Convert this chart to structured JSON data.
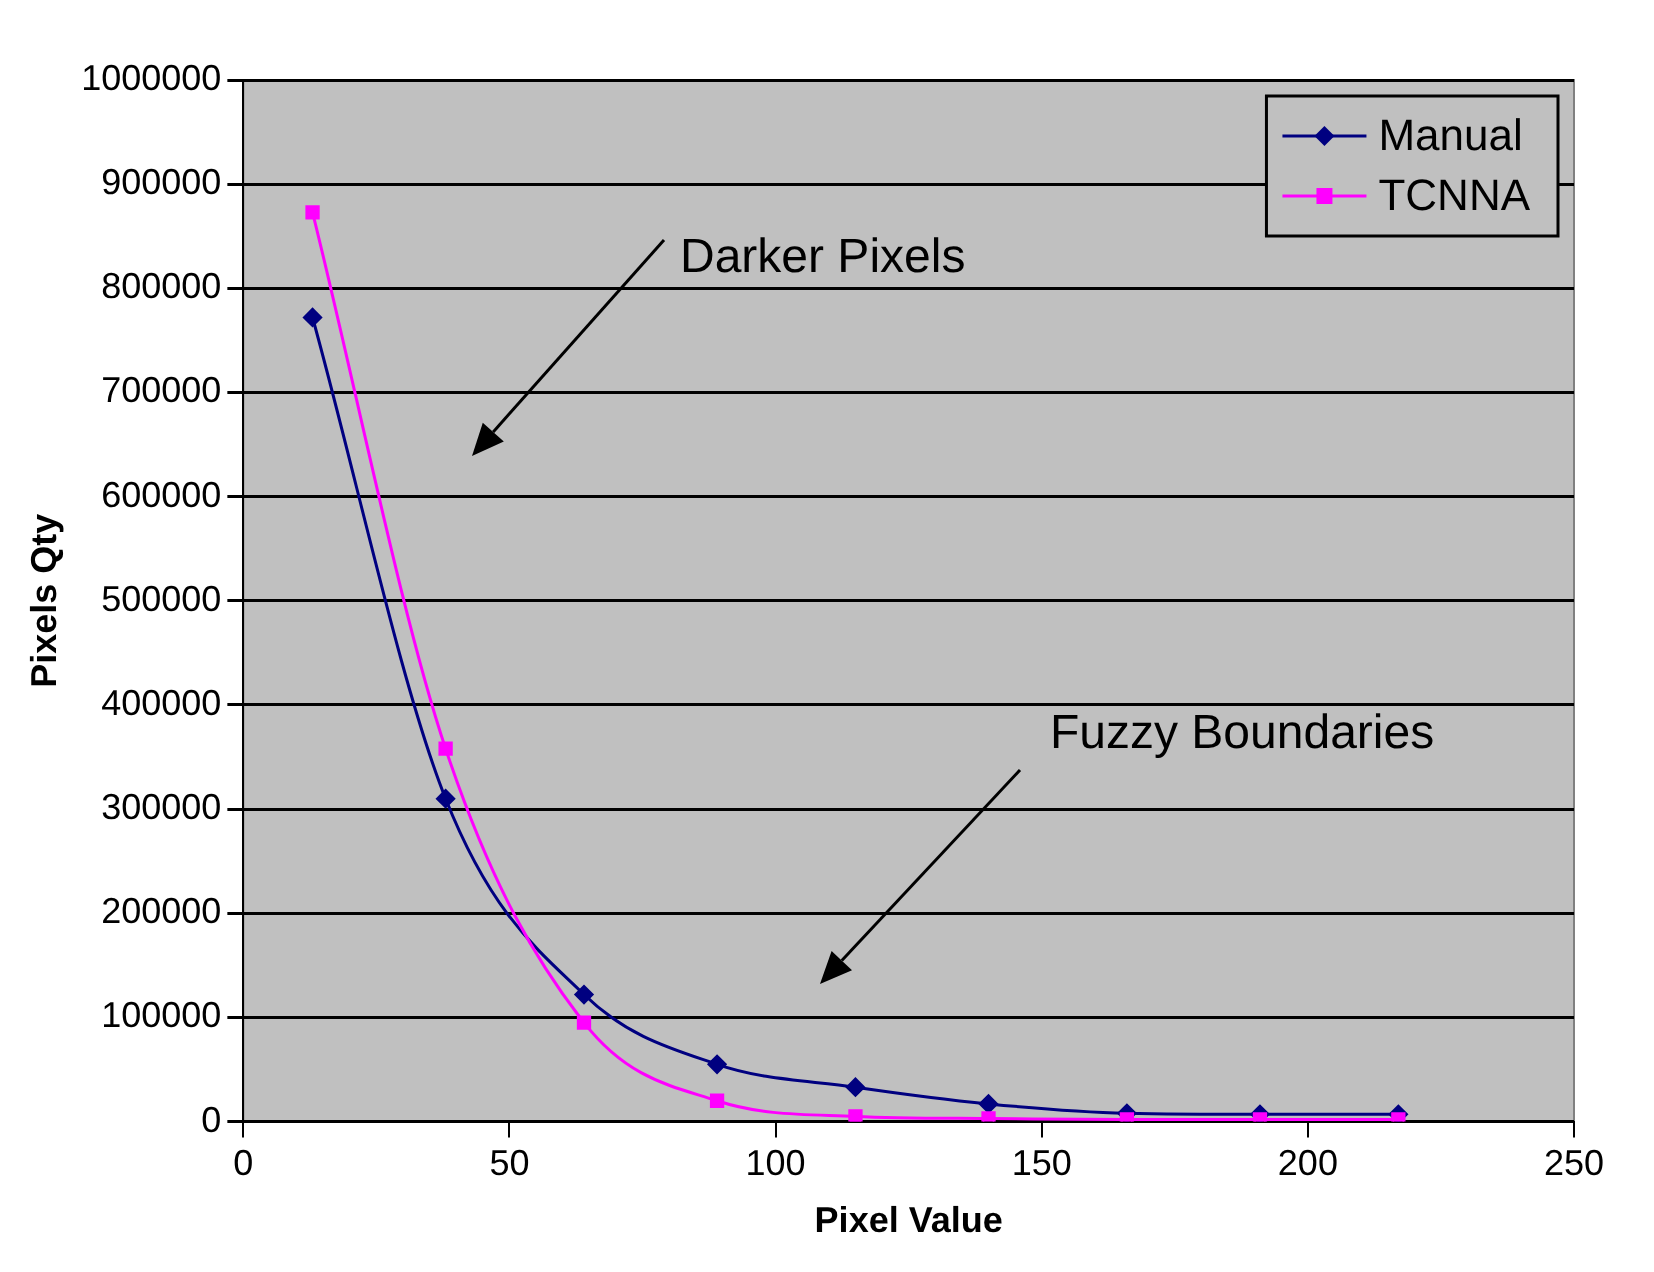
{
  "chart_data": {
    "type": "line",
    "xlabel": "Pixel Value",
    "ylabel": "Pixels Qty",
    "x": [
      13,
      38,
      64,
      89,
      115,
      140,
      166,
      191,
      217
    ],
    "series": [
      {
        "name": "Manual",
        "color": "#000080",
        "marker": "diamond",
        "values": [
          772000,
          310000,
          122000,
          55000,
          33000,
          17000,
          8000,
          7000,
          7000
        ]
      },
      {
        "name": "TCNNA",
        "color": "#ff00ff",
        "marker": "square",
        "values": [
          873000,
          358000,
          95000,
          20000,
          5000,
          3000,
          2000,
          2000,
          2000
        ]
      }
    ],
    "xlim": [
      0,
      250
    ],
    "xticks": [
      0,
      50,
      100,
      150,
      200,
      250
    ],
    "ylim": [
      0,
      1000000
    ],
    "yticks": [
      0,
      100000,
      200000,
      300000,
      400000,
      500000,
      600000,
      700000,
      800000,
      900000,
      1000000
    ],
    "grid": "y",
    "legend": "top right",
    "annotations": [
      "Darker Pixels",
      "Fuzzy Boundaries"
    ]
  }
}
